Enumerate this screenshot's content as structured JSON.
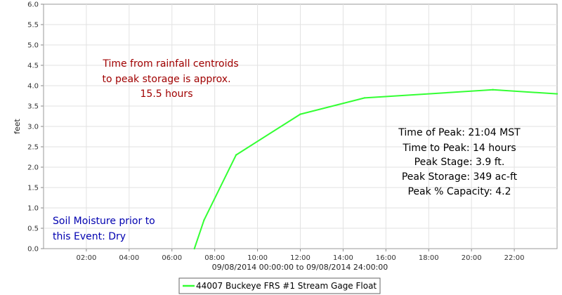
{
  "chart_data": {
    "type": "line",
    "ylabel": "feet",
    "xlabel": "09/08/2014 00:00:00 to 09/08/2014 24:00:00",
    "xlim": [
      0,
      24
    ],
    "ylim": [
      0,
      6
    ],
    "grid": true,
    "y_ticks": [
      0.0,
      0.5,
      1.0,
      1.5,
      2.0,
      2.5,
      3.0,
      3.5,
      4.0,
      4.5,
      5.0,
      5.5,
      6.0
    ],
    "y_tick_labels": [
      "0.0",
      "0.5",
      "1.0",
      "1.5",
      "2.0",
      "2.5",
      "3.0",
      "3.5",
      "4.0",
      "4.5",
      "5.0",
      "5.5",
      "6.0"
    ],
    "x_ticks": [
      2,
      4,
      6,
      8,
      10,
      12,
      14,
      16,
      18,
      20,
      22
    ],
    "x_tick_labels": [
      "02:00",
      "04:00",
      "06:00",
      "08:00",
      "10:00",
      "12:00",
      "14:00",
      "16:00",
      "18:00",
      "20:00",
      "22:00"
    ],
    "series": [
      {
        "name": "44007 Buckeye FRS #1 Stream Gage Float",
        "color": "#33ff33",
        "x": [
          7.05,
          7.5,
          9.0,
          12.0,
          15.0,
          21.0,
          24.0
        ],
        "y": [
          0.0,
          0.7,
          2.3,
          3.3,
          3.7,
          3.9,
          3.8
        ]
      }
    ],
    "legend_position": "bottom-center",
    "annotations": {
      "red": [
        "Time from rainfall centroids",
        "to peak storage is approx.",
        "15.5 hours"
      ],
      "black": [
        "Time of Peak: 21:04 MST",
        "Time to Peak: 14 hours",
        "Peak Stage: 3.9 ft.",
        "Peak Storage: 349 ac-ft",
        "Peak % Capacity: 4.2"
      ],
      "blue": [
        "Soil Moisture prior to",
        "this Event: Dry"
      ]
    }
  }
}
